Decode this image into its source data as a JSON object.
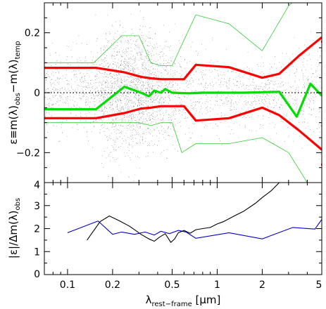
{
  "chart_data": [
    {
      "type": "scatter",
      "panel": "top",
      "ylabel": {
        "a": "ε≡m(λ)",
        "a_sub": "obs",
        "b": "−m(λ)",
        "b_sub": "temp"
      },
      "xscale": "log",
      "xlim": [
        0.07,
        5.0
      ],
      "ylim": [
        -0.3,
        0.3
      ],
      "yticks": [
        -0.2,
        0,
        0.2
      ],
      "ytick_labels": [
        "−0.2",
        "0",
        "0.2"
      ],
      "zero_line": "dotted",
      "colors": {
        "points": "#000000",
        "envelope": "#ff0000",
        "median": "#00cc00",
        "sigma": "#33cc33"
      },
      "scatter_density": [
        {
          "x": 0.1,
          "sd": 0.07
        },
        {
          "x": 0.15,
          "sd": 0.07
        },
        {
          "x": 0.2,
          "sd": 0.1
        },
        {
          "x": 0.3,
          "sd": 0.1
        },
        {
          "x": 0.45,
          "sd": 0.09
        },
        {
          "x": 0.7,
          "sd": 0.07
        },
        {
          "x": 1.2,
          "sd": 0.06
        },
        {
          "x": 2.0,
          "sd": 0.05
        },
        {
          "x": 3.5,
          "sd": 0.07
        },
        {
          "x": 5.0,
          "sd": 0.1
        }
      ],
      "series": [
        {
          "role": "upper-envelope",
          "color": "#ff0000",
          "width": 3.2,
          "x": [
            0.066,
            0.155,
            0.24,
            0.31,
            0.36,
            0.42,
            0.5,
            0.6,
            0.72,
            1.2,
            2.0,
            2.6,
            3.5,
            5.0
          ],
          "y": [
            0.083,
            0.083,
            0.068,
            0.053,
            0.048,
            0.045,
            0.045,
            0.045,
            0.093,
            0.085,
            0.05,
            0.063,
            0.122,
            0.185
          ]
        },
        {
          "role": "lower-envelope",
          "color": "#ff0000",
          "width": 3.2,
          "x": [
            0.066,
            0.155,
            0.24,
            0.31,
            0.36,
            0.42,
            0.5,
            0.6,
            0.72,
            1.2,
            2.0,
            2.6,
            3.5,
            5.0
          ],
          "y": [
            -0.085,
            -0.085,
            -0.068,
            -0.053,
            -0.05,
            -0.045,
            -0.045,
            -0.045,
            -0.093,
            -0.085,
            -0.05,
            -0.075,
            -0.125,
            -0.19
          ]
        },
        {
          "role": "median",
          "color": "#00dd00",
          "width": 3.2,
          "x": [
            0.066,
            0.155,
            0.24,
            0.31,
            0.35,
            0.38,
            0.42,
            0.45,
            0.5,
            0.65,
            0.8,
            1.5,
            2.6,
            3.4,
            4.2,
            5.0
          ],
          "y": [
            -0.055,
            -0.055,
            0.02,
            0.0,
            -0.012,
            0.007,
            0.0,
            0.012,
            0.0,
            -0.002,
            0.0,
            0.0,
            0.003,
            -0.08,
            0.03,
            -0.01
          ]
        },
        {
          "role": "upper-sigma",
          "color": "#33cc33",
          "width": 0.8,
          "x": [
            0.066,
            0.15,
            0.23,
            0.3,
            0.36,
            0.42,
            0.5,
            0.58,
            0.72,
            1.2,
            2.0,
            3.0,
            3.5
          ],
          "y": [
            0.1,
            0.1,
            0.19,
            0.19,
            0.1,
            0.09,
            0.09,
            0.16,
            0.26,
            0.23,
            0.14,
            0.29,
            0.32
          ]
        },
        {
          "role": "lower-sigma",
          "color": "#33cc33",
          "width": 0.8,
          "x": [
            0.066,
            0.15,
            0.23,
            0.3,
            0.36,
            0.42,
            0.5,
            0.58,
            0.72,
            1.2,
            2.0,
            3.0,
            4.0
          ],
          "y": [
            -0.1,
            -0.1,
            -0.1,
            -0.1,
            -0.11,
            -0.1,
            -0.1,
            -0.2,
            -0.17,
            -0.17,
            -0.15,
            -0.2,
            -0.3
          ]
        }
      ],
      "edge_marks": [
        {
          "y": 0.17,
          "color": "#ff0000"
        },
        {
          "y": -0.24,
          "color": "#ff0000"
        }
      ]
    },
    {
      "type": "line",
      "panel": "bottom",
      "ylabel": {
        "a": "|ε|/Δm(λ)",
        "a_sub": "obs"
      },
      "xlabel": {
        "a": "λ",
        "a_sub": "rest−frame",
        "b": " [μm]"
      },
      "xscale": "log",
      "xlim": [
        0.07,
        5.0
      ],
      "ylim": [
        0,
        4
      ],
      "yticks": [
        0,
        1,
        2,
        3,
        4
      ],
      "ytick_labels": [
        "0",
        "1",
        "2",
        "3",
        "4"
      ],
      "xticks": [
        0.1,
        0.2,
        0.5,
        1,
        2,
        5
      ],
      "xtick_labels": [
        "0.1",
        "0.2",
        "0.5",
        "1",
        "2",
        "5"
      ],
      "series": [
        {
          "color": "#0000cc",
          "x": [
            0.1,
            0.16,
            0.2,
            0.23,
            0.28,
            0.33,
            0.38,
            0.42,
            0.48,
            0.55,
            0.62,
            0.72,
            1.2,
            2.0,
            3.2,
            4.5,
            5.0
          ],
          "y": [
            1.82,
            2.33,
            1.75,
            1.85,
            1.75,
            1.85,
            1.72,
            1.88,
            1.78,
            1.92,
            1.85,
            1.58,
            1.82,
            1.55,
            2.05,
            1.98,
            2.4
          ]
        },
        {
          "color": "#000000",
          "x": [
            0.135,
            0.165,
            0.19,
            0.22,
            0.26,
            0.31,
            0.35,
            0.38,
            0.41,
            0.45,
            0.49,
            0.52,
            0.55,
            0.6,
            0.66,
            0.72,
            0.8,
            0.9,
            1.0,
            1.1,
            1.3,
            1.5,
            1.8,
            2.0,
            2.3,
            2.6,
            2.9
          ],
          "y": [
            1.5,
            2.3,
            2.55,
            2.35,
            2.1,
            1.75,
            1.55,
            1.45,
            1.62,
            1.78,
            1.4,
            1.55,
            1.82,
            1.92,
            1.8,
            1.95,
            2.0,
            2.05,
            2.2,
            2.3,
            2.55,
            2.75,
            3.1,
            3.35,
            3.65,
            4.0,
            4.3
          ]
        }
      ]
    }
  ]
}
